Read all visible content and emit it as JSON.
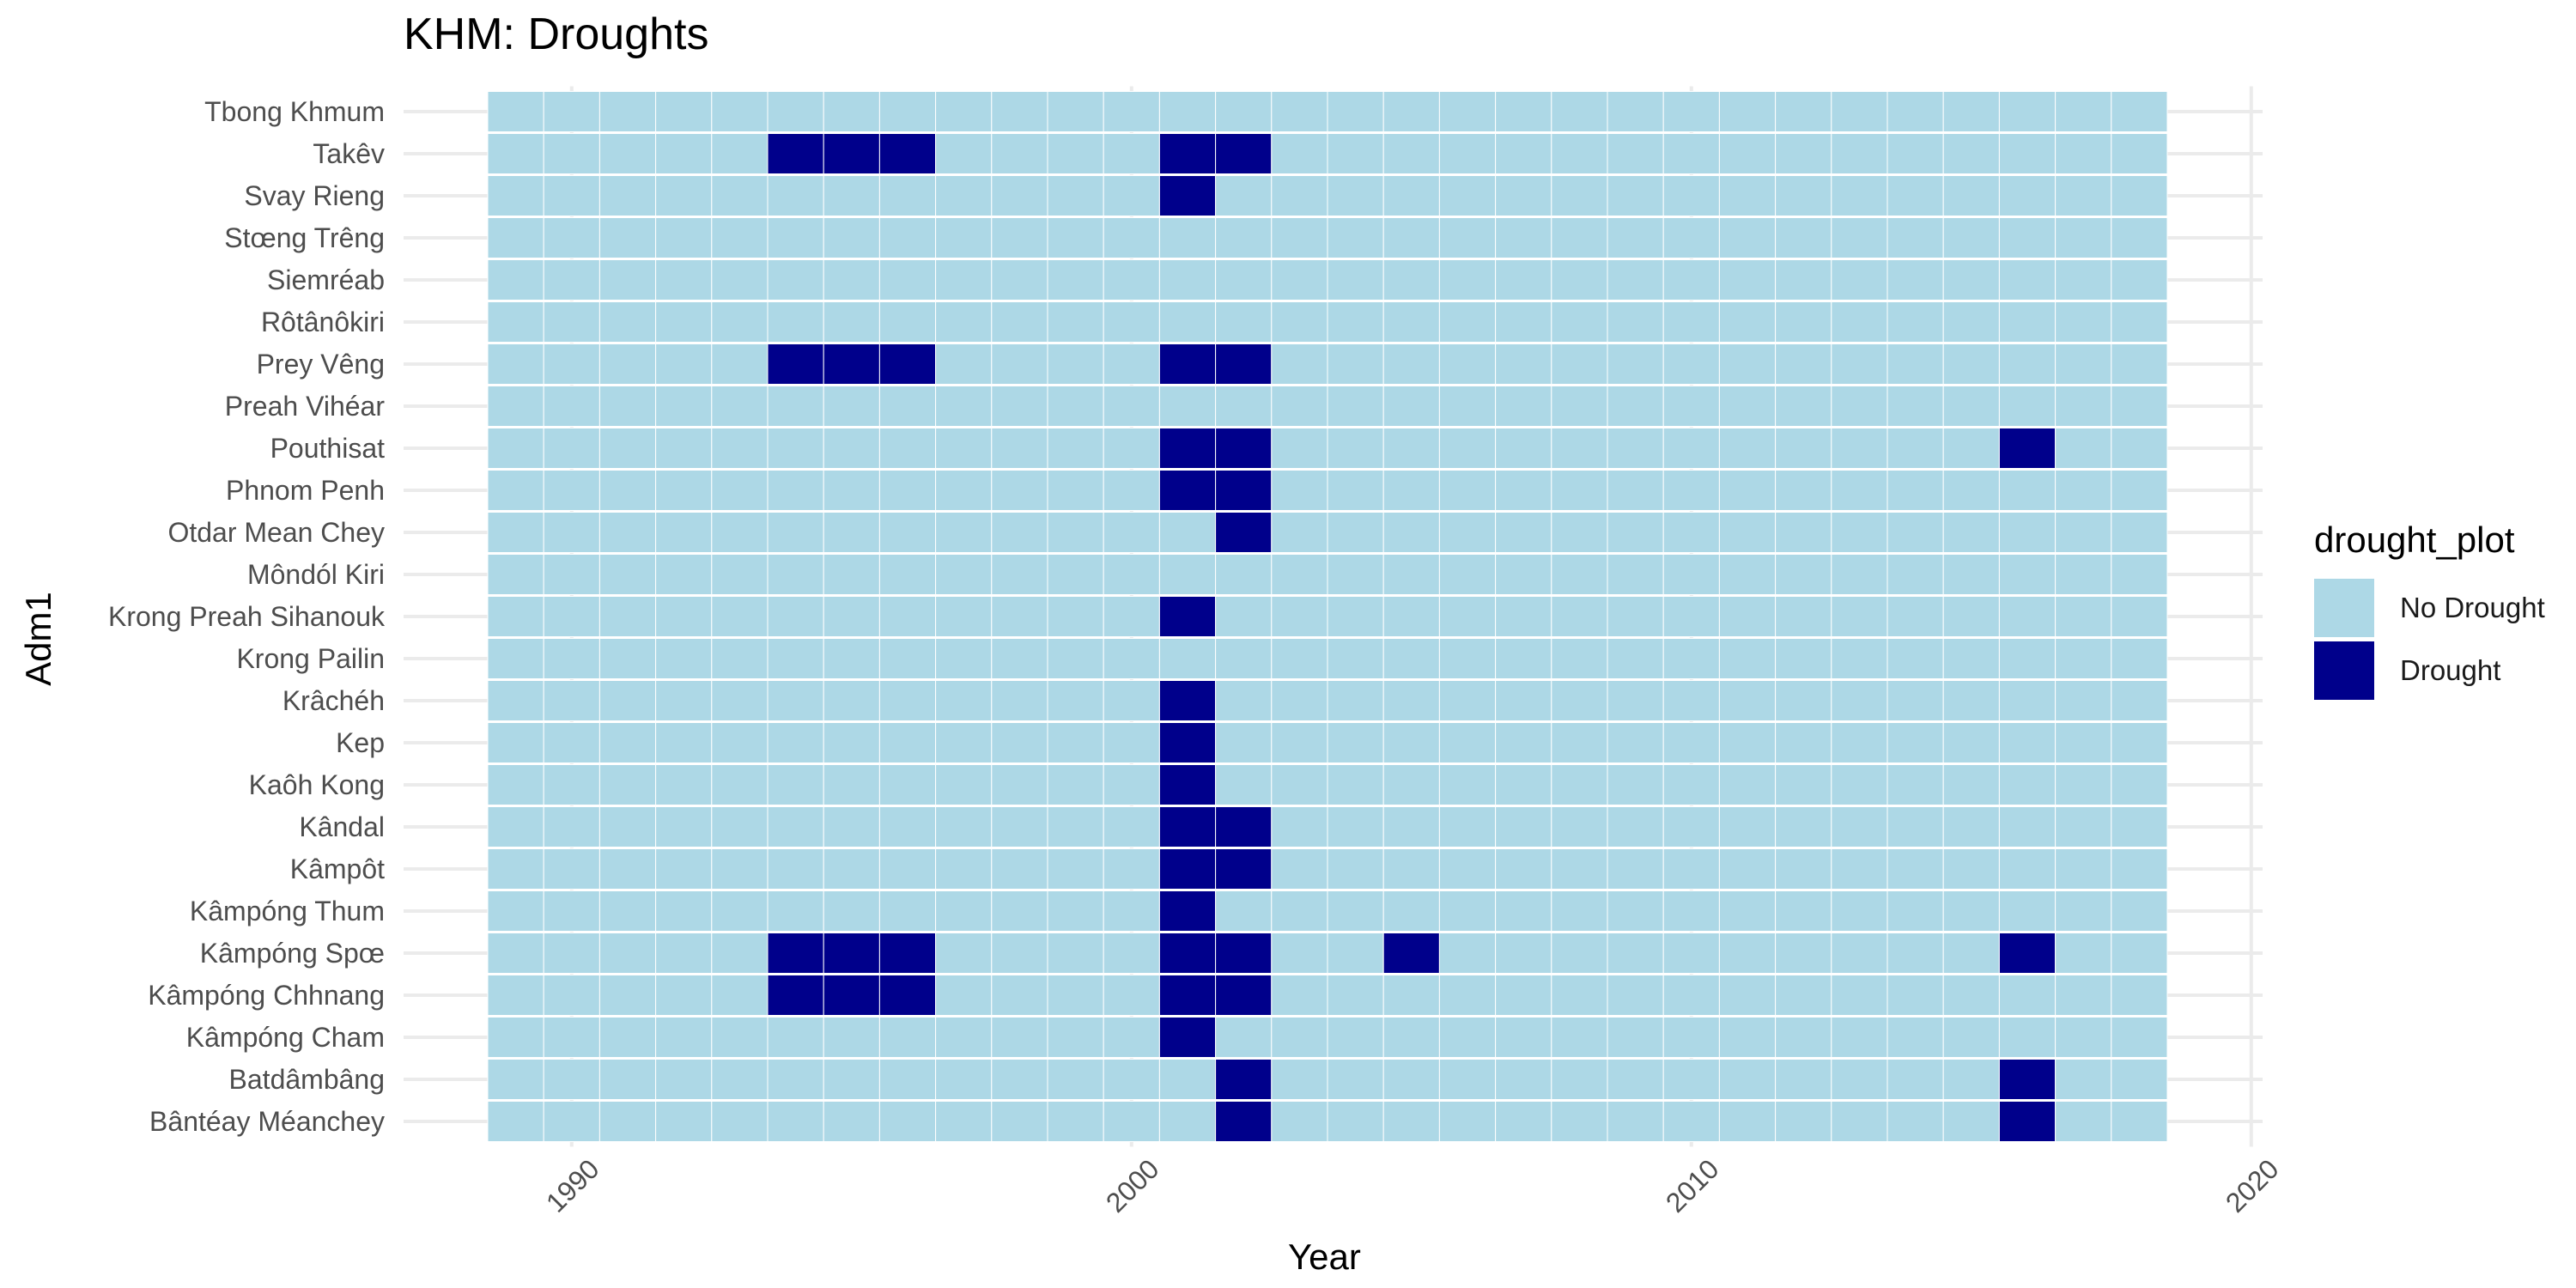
{
  "colors": {
    "no_drought": "#add8e6",
    "drought": "#00008b",
    "grid": "#ebebeb",
    "cell_border": "#ffffff",
    "tick_label": "#4d4d4d"
  },
  "chart_data": {
    "type": "heatmap",
    "title": "KHM: Droughts",
    "xlabel": "Year",
    "ylabel": "Adm1",
    "x_range": [
      1988.5,
      2018.5
    ],
    "x_ticks": [
      1990,
      2000,
      2010,
      2020
    ],
    "x_tick_labels": [
      "1990",
      "2000",
      "2010",
      "2020"
    ],
    "grid": true,
    "legend": {
      "title": "drought_plot",
      "position": "right",
      "entries": [
        "No Drought",
        "Drought"
      ]
    },
    "rows": [
      "Tbong Khmum",
      "Takêv",
      "Svay Rieng",
      "Stœng Trêng",
      "Siemréab",
      "Rôtânôkiri",
      "Prey Vêng",
      "Preah Vihéar",
      "Pouthisat",
      "Phnom Penh",
      "Otdar Mean Chey",
      "Môndól Kiri",
      "Krong Preah Sihanouk",
      "Krong Pailin",
      "Krâchéh",
      "Kep",
      "Kaôh Kong",
      "Kândal",
      "Kâmpôt",
      "Kâmpóng Thum",
      "Kâmpóng Spœ",
      "Kâmpóng Chhnang",
      "Kâmpóng Cham",
      "Batdâmbâng",
      "Bântéay Méanchey"
    ],
    "drought_years": {
      "Tbong Khmum": [],
      "Takêv": [
        1994,
        1995,
        1996,
        2001,
        2002
      ],
      "Svay Rieng": [
        2001
      ],
      "Stœng Trêng": [],
      "Siemréab": [],
      "Rôtânôkiri": [],
      "Prey Vêng": [
        1994,
        1995,
        1996,
        2001,
        2002
      ],
      "Preah Vihéar": [],
      "Pouthisat": [
        2001,
        2002,
        2016
      ],
      "Phnom Penh": [
        2001,
        2002
      ],
      "Otdar Mean Chey": [
        2002
      ],
      "Môndól Kiri": [],
      "Krong Preah Sihanouk": [
        2001
      ],
      "Krong Pailin": [],
      "Krâchéh": [
        2001
      ],
      "Kep": [
        2001
      ],
      "Kaôh Kong": [
        2001
      ],
      "Kândal": [
        2001,
        2002
      ],
      "Kâmpôt": [
        2001,
        2002
      ],
      "Kâmpóng Thum": [
        2001
      ],
      "Kâmpóng Spœ": [
        1994,
        1995,
        1996,
        2001,
        2002,
        2005,
        2016
      ],
      "Kâmpóng Chhnang": [
        1994,
        1995,
        1996,
        2001,
        2002
      ],
      "Kâmpóng Cham": [
        2001
      ],
      "Batdâmbâng": [
        2002,
        2016
      ],
      "Bântéay Méanchey": [
        2002,
        2016
      ]
    }
  }
}
